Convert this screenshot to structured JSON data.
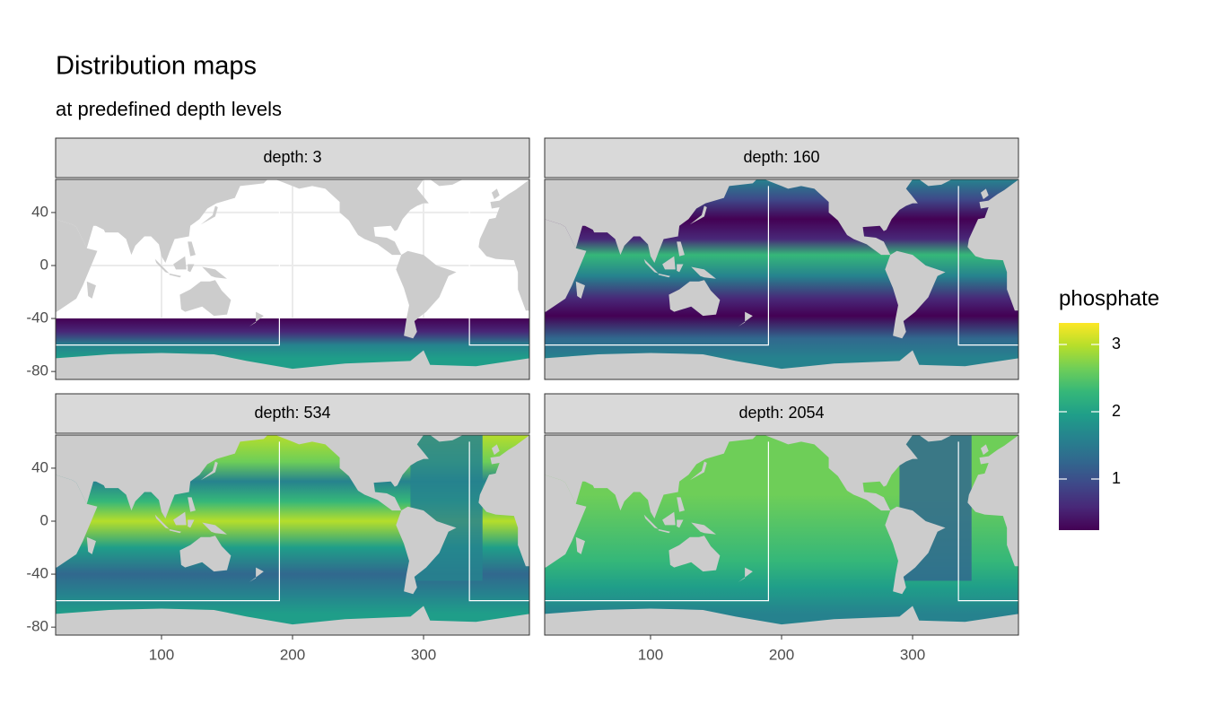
{
  "chart_data": {
    "type": "faceted-map",
    "title": "Distribution maps",
    "subtitle": "at predefined depth levels",
    "panels": [
      {
        "label": "depth: 3"
      },
      {
        "label": "depth: 160"
      },
      {
        "label": "depth: 534"
      },
      {
        "label": "depth: 2054"
      }
    ],
    "xlim": [
      19.2,
      380.8
    ],
    "xticks": [
      100,
      200,
      300
    ],
    "ylim": [
      -86,
      65
    ],
    "yticks": [
      40,
      0,
      -40,
      -80
    ],
    "grid": true,
    "legend": {
      "title": "phosphate",
      "colormap": "viridis",
      "lim": [
        0.24,
        3.32
      ],
      "ticks": [
        1,
        2,
        3
      ],
      "position": "right"
    }
  }
}
